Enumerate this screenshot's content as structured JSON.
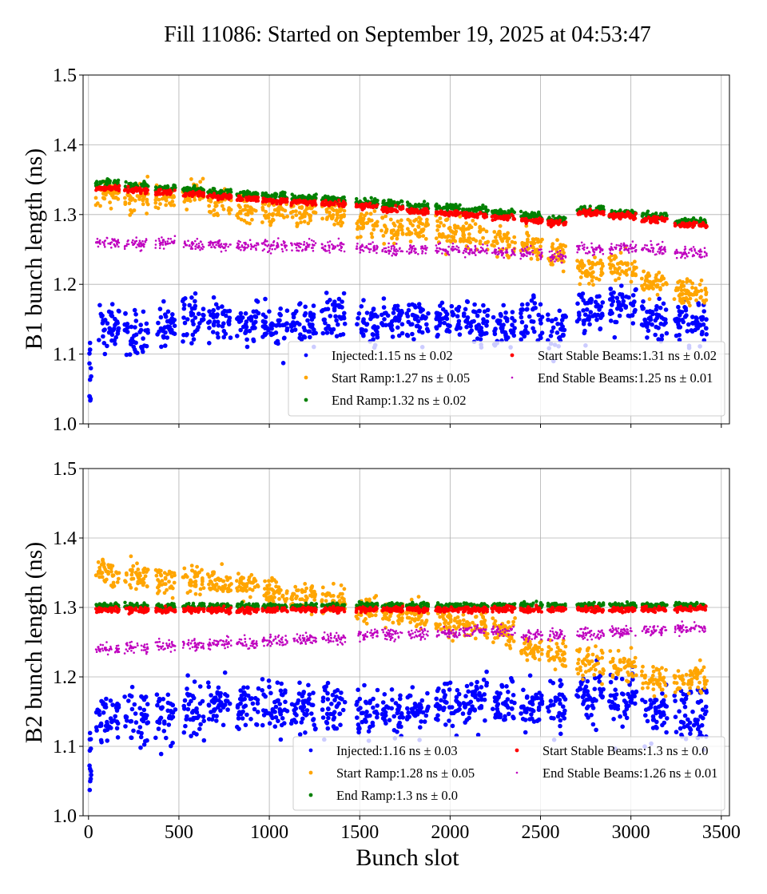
{
  "chart_data": [
    {
      "type": "scatter",
      "title": "Fill 11086: Started on September 19, 2025 at 04:53:47",
      "xlabel": "",
      "ylabel": "B1 bunch length (ns)",
      "xlim": [
        -30,
        3545
      ],
      "ylim": [
        1.0,
        1.5
      ],
      "xticks": [
        0,
        500,
        1000,
        1500,
        2000,
        2500,
        3000,
        3500
      ],
      "yticks": [
        "1.0",
        "1.1",
        "1.2",
        "1.3",
        "1.4",
        "1.5"
      ],
      "grid": true,
      "legend_placement": "lower-right",
      "trains": [
        [
          40,
          170
        ],
        [
          200,
          330
        ],
        [
          370,
          480
        ],
        [
          520,
          640
        ],
        [
          660,
          790
        ],
        [
          820,
          940
        ],
        [
          960,
          1100
        ],
        [
          1120,
          1260
        ],
        [
          1290,
          1420
        ],
        [
          1480,
          1600
        ],
        [
          1620,
          1740
        ],
        [
          1760,
          1880
        ],
        [
          1920,
          2060
        ],
        [
          2070,
          2210
        ],
        [
          2230,
          2360
        ],
        [
          2390,
          2510
        ],
        [
          2540,
          2640
        ],
        [
          2700,
          2850
        ],
        [
          2880,
          3030
        ],
        [
          3060,
          3200
        ],
        [
          3240,
          3420
        ]
      ],
      "series": [
        {
          "name": "Injected:1.15 ns ± 0.02",
          "color": "#0000ff",
          "spread": 0.03,
          "values": [
            1.14,
            1.13,
            1.14,
            1.155,
            1.15,
            1.145,
            1.14,
            1.145,
            1.155,
            1.14,
            1.145,
            1.15,
            1.15,
            1.145,
            1.14,
            1.15,
            1.14,
            1.16,
            1.17,
            1.15,
            1.15
          ]
        },
        {
          "name": "Start Ramp:1.27 ns ± 0.05",
          "color": "#ffa500",
          "spread": 0.02,
          "values": [
            1.33,
            1.325,
            1.325,
            1.33,
            1.32,
            1.31,
            1.305,
            1.305,
            1.3,
            1.285,
            1.28,
            1.28,
            1.275,
            1.27,
            1.26,
            1.255,
            1.245,
            1.22,
            1.225,
            1.2,
            1.19
          ]
        },
        {
          "name": "End Ramp:1.32 ns ± 0.02",
          "color": "#008000",
          "spread": 0.005,
          "values": [
            1.345,
            1.342,
            1.338,
            1.335,
            1.332,
            1.33,
            1.327,
            1.324,
            1.322,
            1.318,
            1.315,
            1.312,
            1.31,
            1.306,
            1.302,
            1.298,
            1.294,
            1.307,
            1.302,
            1.298,
            1.29
          ]
        },
        {
          "name": "Start Stable Beams:1.31 ns ± 0.02",
          "color": "#ff0000",
          "spread": 0.004,
          "values": [
            1.338,
            1.335,
            1.332,
            1.329,
            1.326,
            1.323,
            1.32,
            1.318,
            1.315,
            1.312,
            1.308,
            1.305,
            1.302,
            1.299,
            1.295,
            1.291,
            1.288,
            1.302,
            1.298,
            1.293,
            1.285
          ]
        },
        {
          "name": "End Stable Beams:1.25 ns ± 0.01",
          "color": "#bf00bf",
          "spread": 0.008,
          "values": [
            1.26,
            1.258,
            1.26,
            1.257,
            1.256,
            1.256,
            1.255,
            1.255,
            1.254,
            1.252,
            1.25,
            1.25,
            1.25,
            1.248,
            1.246,
            1.245,
            1.24,
            1.25,
            1.252,
            1.25,
            1.245
          ]
        }
      ]
    },
    {
      "type": "scatter",
      "xlabel": "Bunch slot",
      "ylabel": "B2 bunch length (ns)",
      "xlim": [
        -30,
        3545
      ],
      "ylim": [
        1.0,
        1.5
      ],
      "xticks": [
        0,
        500,
        1000,
        1500,
        2000,
        2500,
        3000,
        3500
      ],
      "yticks": [
        "1.0",
        "1.1",
        "1.2",
        "1.3",
        "1.4",
        "1.5"
      ],
      "grid": true,
      "legend_placement": "lower-right",
      "trains": [
        [
          40,
          170
        ],
        [
          200,
          330
        ],
        [
          370,
          480
        ],
        [
          520,
          640
        ],
        [
          660,
          790
        ],
        [
          820,
          940
        ],
        [
          960,
          1100
        ],
        [
          1120,
          1260
        ],
        [
          1290,
          1420
        ],
        [
          1480,
          1600
        ],
        [
          1620,
          1740
        ],
        [
          1760,
          1880
        ],
        [
          1920,
          2060
        ],
        [
          2070,
          2210
        ],
        [
          2230,
          2360
        ],
        [
          2390,
          2510
        ],
        [
          2540,
          2640
        ],
        [
          2700,
          2850
        ],
        [
          2880,
          3030
        ],
        [
          3060,
          3200
        ],
        [
          3240,
          3420
        ]
      ],
      "series": [
        {
          "name": "Injected:1.16 ns ± 0.03",
          "color": "#0000ff",
          "spread": 0.035,
          "values": [
            1.145,
            1.14,
            1.15,
            1.155,
            1.165,
            1.155,
            1.16,
            1.155,
            1.155,
            1.15,
            1.15,
            1.155,
            1.165,
            1.17,
            1.17,
            1.16,
            1.16,
            1.17,
            1.17,
            1.15,
            1.15
          ]
        },
        {
          "name": "Start Ramp:1.28 ns ± 0.05",
          "color": "#ffa500",
          "spread": 0.02,
          "values": [
            1.35,
            1.345,
            1.34,
            1.34,
            1.335,
            1.33,
            1.325,
            1.315,
            1.31,
            1.3,
            1.29,
            1.29,
            1.28,
            1.275,
            1.265,
            1.24,
            1.235,
            1.22,
            1.215,
            1.195,
            1.195
          ]
        },
        {
          "name": "End Ramp:1.3 ns ± 0.0",
          "color": "#008000",
          "spread": 0.004,
          "values": [
            1.302,
            1.302,
            1.302,
            1.302,
            1.302,
            1.302,
            1.302,
            1.302,
            1.303,
            1.303,
            1.303,
            1.303,
            1.303,
            1.303,
            1.303,
            1.303,
            1.303,
            1.303,
            1.303,
            1.303,
            1.303
          ]
        },
        {
          "name": "Start Stable Beams:1.3 ns ± 0.0",
          "color": "#ff0000",
          "spread": 0.004,
          "values": [
            1.296,
            1.296,
            1.296,
            1.296,
            1.296,
            1.296,
            1.296,
            1.297,
            1.297,
            1.297,
            1.297,
            1.297,
            1.297,
            1.297,
            1.297,
            1.297,
            1.297,
            1.297,
            1.297,
            1.297,
            1.298
          ]
        },
        {
          "name": "End Stable Beams:1.26 ns ± 0.01",
          "color": "#bf00bf",
          "spread": 0.008,
          "values": [
            1.24,
            1.242,
            1.245,
            1.246,
            1.248,
            1.248,
            1.252,
            1.255,
            1.256,
            1.26,
            1.262,
            1.262,
            1.264,
            1.266,
            1.266,
            1.26,
            1.26,
            1.262,
            1.265,
            1.268,
            1.27
          ]
        }
      ]
    }
  ]
}
